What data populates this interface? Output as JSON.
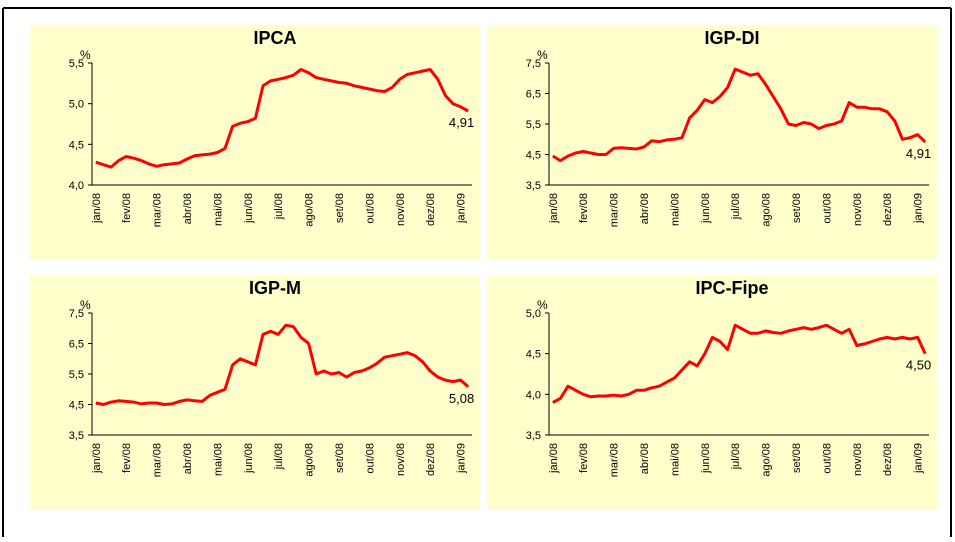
{
  "chart_data": [
    {
      "type": "line",
      "title": "IPCA",
      "y_label": "%",
      "color": "#ff0000",
      "ylim": [
        4,
        5.5
      ],
      "yticks": [
        {
          "value": 4,
          "label": "4,0"
        },
        {
          "value": 4.5,
          "label": "4,5"
        },
        {
          "value": 5,
          "label": "5,0"
        },
        {
          "value": 5.5,
          "label": "5,5"
        }
      ],
      "categories": [
        "jan/08",
        null,
        null,
        null,
        "fev/08",
        null,
        null,
        null,
        "mar/08",
        null,
        null,
        null,
        "abr/08",
        null,
        null,
        null,
        "mai/08",
        null,
        null,
        null,
        "jun/08",
        null,
        null,
        null,
        "jul/08",
        null,
        null,
        null,
        "ago/08",
        null,
        null,
        null,
        "set/08",
        null,
        null,
        null,
        "out/08",
        null,
        null,
        null,
        "nov/08",
        null,
        null,
        null,
        "dez/08",
        null,
        null,
        null,
        "jan/09",
        null
      ],
      "values": [
        4.28,
        4.25,
        4.22,
        4.3,
        4.35,
        4.33,
        4.3,
        4.26,
        4.23,
        4.25,
        4.26,
        4.27,
        4.32,
        4.36,
        4.37,
        4.38,
        4.4,
        4.45,
        4.72,
        4.76,
        4.78,
        4.82,
        5.22,
        5.28,
        5.3,
        5.32,
        5.35,
        5.42,
        5.38,
        5.32,
        5.3,
        5.28,
        5.26,
        5.25,
        5.22,
        5.2,
        5.18,
        5.16,
        5.15,
        5.2,
        5.3,
        5.36,
        5.38,
        5.4,
        5.42,
        5.3,
        5.1,
        5.0,
        4.96,
        4.91
      ],
      "value_labels": [
        null,
        null,
        null,
        null,
        null,
        null,
        null,
        null,
        null,
        null,
        null,
        null,
        null,
        null,
        null,
        null,
        null,
        null,
        null,
        null,
        null,
        null,
        null,
        null,
        null,
        null,
        null,
        null,
        null,
        null,
        null,
        null,
        null,
        null,
        null,
        null,
        null,
        null,
        null,
        null,
        null,
        null,
        null,
        null,
        null,
        null,
        null,
        null,
        null,
        "4,91"
      ]
    },
    {
      "type": "line",
      "title": "IGP-DI",
      "y_label": "%",
      "color": "#ff0000",
      "ylim": [
        3.5,
        7.5
      ],
      "yticks": [
        3.5,
        4.5,
        5.5,
        6.5,
        7.5
      ],
      "ytick_labels": [
        "3,5",
        "4,5",
        "5,5",
        "6,5",
        "7,5"
      ],
      "categories": [
        "jan/08",
        null,
        null,
        null,
        "fev/08",
        null,
        null,
        null,
        "mar/08",
        null,
        null,
        null,
        "abr/08",
        null,
        null,
        null,
        "mai/08",
        null,
        null,
        null,
        "jun/08",
        null,
        null,
        null,
        "jul/08",
        null,
        null,
        null,
        "ago/08",
        null,
        null,
        null,
        "set/08",
        null,
        null,
        null,
        "out/08",
        null,
        null,
        null,
        "nov/08",
        null,
        null,
        null,
        "dez/08",
        null,
        null,
        null,
        "jan/09",
        null
      ],
      "values": [
        4.45,
        4.3,
        4.45,
        4.55,
        4.6,
        4.55,
        4.5,
        4.5,
        4.7,
        4.72,
        4.7,
        4.68,
        4.75,
        4.95,
        4.92,
        4.98,
        5.0,
        5.05,
        5.7,
        5.95,
        6.3,
        6.2,
        6.4,
        6.7,
        7.3,
        7.2,
        7.1,
        7.15,
        6.8,
        6.4,
        6.0,
        5.5,
        5.45,
        5.55,
        5.5,
        5.35,
        5.45,
        5.5,
        5.6,
        6.2,
        6.05,
        6.05,
        6.0,
        6.0,
        5.9,
        5.6,
        5.0,
        5.05,
        5.15,
        4.91
      ],
      "value_labels": [
        null,
        null,
        null,
        null,
        null,
        null,
        null,
        null,
        null,
        null,
        null,
        null,
        null,
        null,
        null,
        null,
        null,
        null,
        null,
        null,
        null,
        null,
        null,
        null,
        null,
        null,
        null,
        null,
        null,
        null,
        null,
        null,
        null,
        null,
        null,
        null,
        null,
        null,
        null,
        null,
        null,
        null,
        null,
        null,
        null,
        null,
        null,
        null,
        null,
        "4,91"
      ]
    },
    {
      "type": "line",
      "title": "IGP-M",
      "y_label": "%",
      "color": "#ff0000",
      "ylim": [
        3.5,
        7.5
      ],
      "yticks": [
        {
          "value": 3.5,
          "label": "3,5"
        },
        {
          "value": 4.5,
          "label": "4,5"
        },
        {
          "value": 5.5,
          "label": "5,5"
        },
        {
          "value": 6.5,
          "label": "6,5"
        },
        {
          "value": 7.5,
          "label": "7,5"
        }
      ],
      "categories": [
        "jan/08",
        null,
        null,
        null,
        "fev/08",
        null,
        null,
        null,
        "mar/08",
        null,
        null,
        null,
        "abr/08",
        null,
        null,
        null,
        "mai/08",
        null,
        null,
        null,
        "jun/08",
        null,
        null,
        null,
        "jul/08",
        null,
        null,
        null,
        "ago/08",
        null,
        null,
        null,
        "set/08",
        null,
        null,
        null,
        "out/08",
        null,
        null,
        null,
        "nov/08",
        null,
        null,
        null,
        "dez/08",
        null,
        null,
        null,
        "jan/09",
        null
      ],
      "values": [
        4.55,
        4.5,
        4.58,
        4.62,
        4.6,
        4.58,
        4.52,
        4.55,
        4.55,
        4.5,
        4.52,
        4.6,
        4.65,
        4.62,
        4.6,
        4.8,
        4.9,
        5.0,
        5.8,
        6.0,
        5.9,
        5.8,
        6.8,
        6.9,
        6.8,
        7.1,
        7.05,
        6.7,
        6.5,
        5.5,
        5.6,
        5.5,
        5.55,
        5.4,
        5.55,
        5.6,
        5.7,
        5.85,
        6.05,
        6.1,
        6.15,
        6.2,
        6.1,
        5.9,
        5.6,
        5.4,
        5.3,
        5.25,
        5.3,
        5.08
      ],
      "value_labels": [
        null,
        null,
        null,
        null,
        null,
        null,
        null,
        null,
        null,
        null,
        null,
        null,
        null,
        null,
        null,
        null,
        null,
        null,
        null,
        null,
        null,
        null,
        null,
        null,
        null,
        null,
        null,
        null,
        null,
        null,
        null,
        null,
        null,
        null,
        null,
        null,
        null,
        null,
        null,
        null,
        null,
        null,
        null,
        null,
        null,
        null,
        null,
        null,
        null,
        "5,08"
      ]
    },
    {
      "type": "line",
      "title": "IPC-Fipe",
      "y_label": "%",
      "color": "#ff0000",
      "ylim": [
        3.5,
        5
      ],
      "yticks": [
        {
          "value": 3.5,
          "label": "3,5"
        },
        {
          "value": 4,
          "label": "4,0"
        },
        {
          "value": 4.5,
          "label": "4,5"
        },
        {
          "value": 5,
          "label": "5,0"
        }
      ],
      "categories": [
        "jan/08",
        null,
        null,
        null,
        "fev/08",
        null,
        null,
        null,
        "mar/08",
        null,
        null,
        null,
        "abr/08",
        null,
        null,
        null,
        "mai/08",
        null,
        null,
        null,
        "jun/08",
        null,
        null,
        null,
        "jul/08",
        null,
        null,
        null,
        "ago/08",
        null,
        null,
        null,
        "set/08",
        null,
        null,
        null,
        "out/08",
        null,
        null,
        null,
        "nov/08",
        null,
        null,
        null,
        "dez/08",
        null,
        null,
        null,
        "jan/09",
        null
      ],
      "values": [
        3.9,
        3.95,
        4.1,
        4.05,
        4.0,
        3.97,
        3.98,
        3.98,
        3.99,
        3.98,
        4.0,
        4.05,
        4.05,
        4.08,
        4.1,
        4.15,
        4.2,
        4.3,
        4.4,
        4.35,
        4.5,
        4.7,
        4.65,
        4.55,
        4.85,
        4.8,
        4.75,
        4.75,
        4.78,
        4.76,
        4.75,
        4.78,
        4.8,
        4.82,
        4.8,
        4.82,
        4.85,
        4.8,
        4.75,
        4.8,
        4.6,
        4.62,
        4.65,
        4.68,
        4.7,
        4.68,
        4.7,
        4.68,
        4.7,
        4.5
      ],
      "value_labels": [
        null,
        null,
        null,
        null,
        null,
        null,
        null,
        null,
        null,
        null,
        null,
        null,
        null,
        null,
        null,
        null,
        null,
        null,
        null,
        null,
        null,
        null,
        null,
        null,
        null,
        null,
        null,
        null,
        null,
        null,
        null,
        null,
        null,
        null,
        null,
        null,
        null,
        null,
        null,
        null,
        null,
        null,
        null,
        null,
        null,
        null,
        null,
        null,
        null,
        "4,50"
      ]
    }
  ]
}
